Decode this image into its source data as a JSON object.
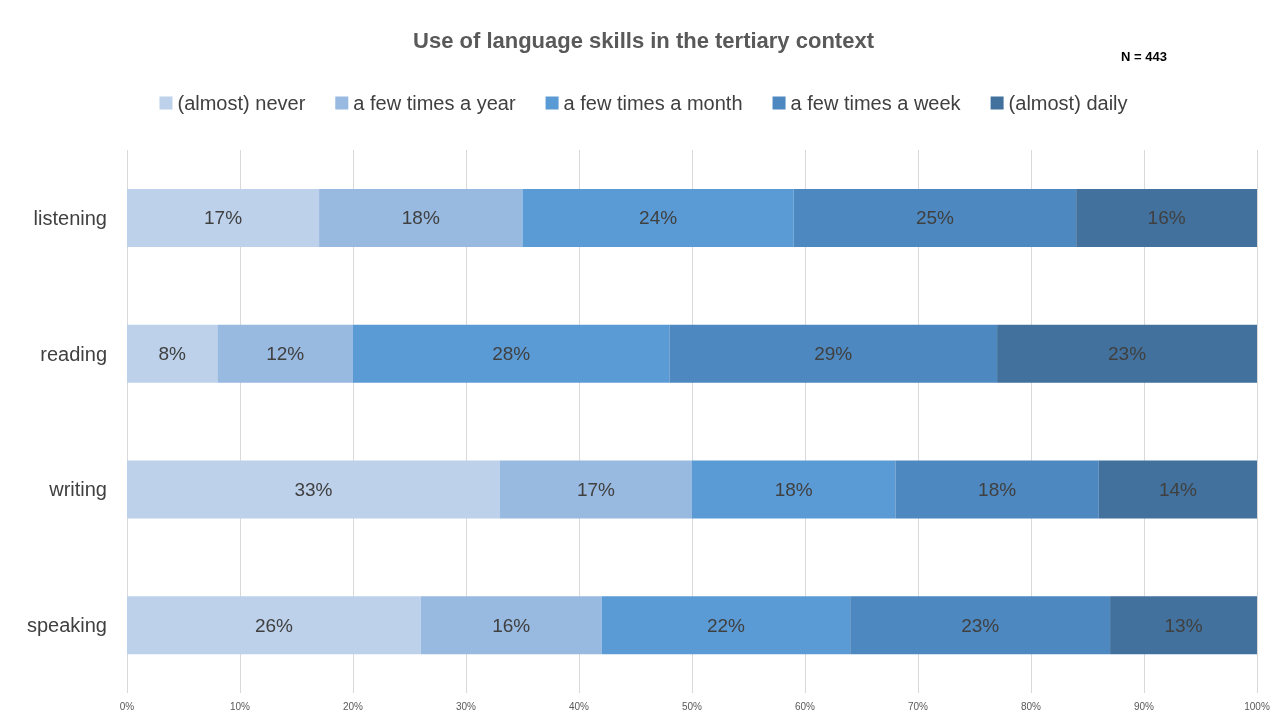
{
  "chart_data": {
    "type": "bar",
    "title": "Use of language skills in the tertiary context",
    "annotations": [
      "N = 443"
    ],
    "orientation": "horizontal",
    "stacked": true,
    "categories": [
      "listening",
      "reading",
      "writing",
      "speaking"
    ],
    "series": [
      {
        "name": "(almost) never",
        "color": "#bdd1eb",
        "values": [
          17,
          8,
          33,
          26
        ],
        "value_labels": [
          "17%",
          "8%",
          "33%",
          "26%"
        ]
      },
      {
        "name": "a few times a year",
        "color": "#98b9e0",
        "values": [
          18,
          12,
          17,
          16
        ],
        "value_labels": [
          "18%",
          "12%",
          "17%",
          "16%"
        ]
      },
      {
        "name": "a few times a month",
        "color": "#5b9bd5",
        "values": [
          24,
          28,
          18,
          22
        ],
        "value_labels": [
          "24%",
          "28%",
          "18%",
          "22%"
        ]
      },
      {
        "name": "a few times a week",
        "color": "#4d88c0",
        "values": [
          25,
          29,
          18,
          23
        ],
        "value_labels": [
          "25%",
          "29%",
          "18%",
          "23%"
        ]
      },
      {
        "name": "(almost) daily",
        "color": "#41719c",
        "values": [
          16,
          23,
          14,
          13
        ],
        "value_labels": [
          "16%",
          "23%",
          "14%",
          "13%"
        ]
      }
    ],
    "xlim": [
      0,
      100
    ],
    "xticks": [
      {
        "value": 0,
        "label": "0%"
      },
      {
        "value": 10,
        "label": "10%"
      },
      {
        "value": 20,
        "label": "20%"
      },
      {
        "value": 30,
        "label": "30%"
      },
      {
        "value": 40,
        "label": "40%"
      },
      {
        "value": 50,
        "label": "50%"
      },
      {
        "value": 60,
        "label": "60%"
      },
      {
        "value": 70,
        "label": "70%"
      },
      {
        "value": 80,
        "label": "80%"
      },
      {
        "value": 90,
        "label": "90%"
      },
      {
        "value": 100,
        "label": "100%"
      }
    ],
    "grid": "x",
    "legend": "top"
  }
}
